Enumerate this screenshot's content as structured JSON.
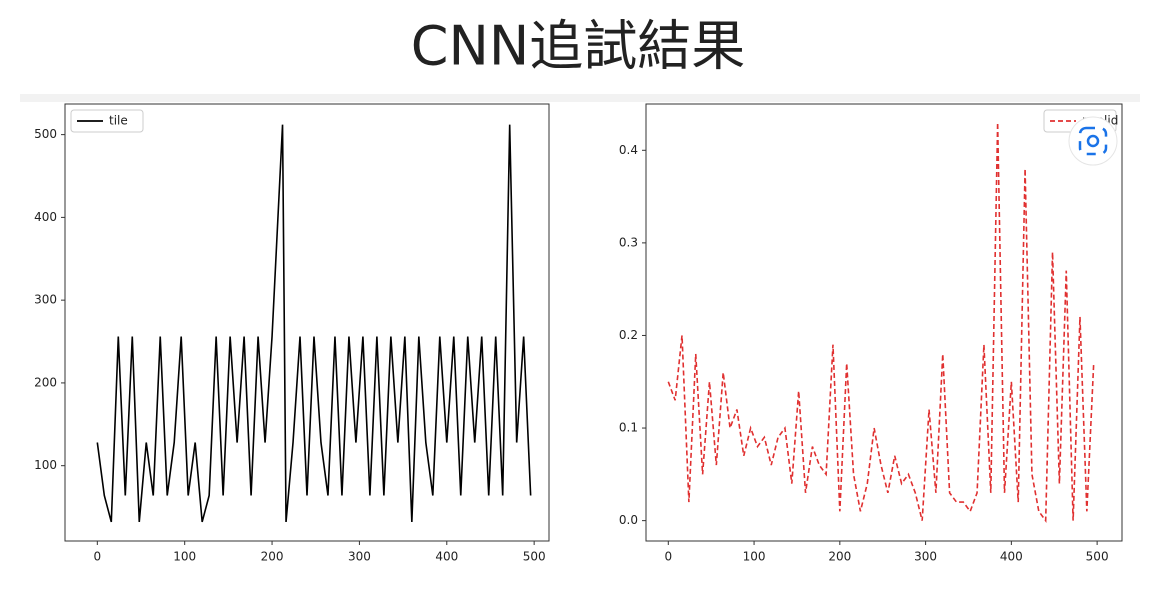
{
  "title": "CNN追試結果",
  "chart_data": [
    {
      "type": "line",
      "legend": "upper left",
      "x": [
        0,
        8,
        16,
        24,
        32,
        40,
        48,
        56,
        64,
        72,
        80,
        88,
        96,
        104,
        112,
        120,
        128,
        136,
        144,
        152,
        160,
        168,
        176,
        184,
        192,
        200,
        212,
        216,
        224,
        232,
        240,
        248,
        256,
        264,
        272,
        280,
        288,
        296,
        304,
        312,
        320,
        328,
        336,
        344,
        352,
        360,
        368,
        376,
        384,
        392,
        400,
        408,
        416,
        424,
        432,
        440,
        448,
        456,
        464,
        472,
        480,
        488,
        496
      ],
      "series": [
        {
          "name": "tile",
          "color": "#000000",
          "linestyle": "solid",
          "values": [
            128,
            64,
            32,
            256,
            64,
            256,
            32,
            128,
            64,
            256,
            64,
            128,
            256,
            64,
            128,
            32,
            64,
            256,
            64,
            256,
            128,
            256,
            64,
            256,
            128,
            256,
            512,
            32,
            128,
            256,
            64,
            256,
            128,
            64,
            256,
            64,
            256,
            128,
            256,
            64,
            256,
            64,
            256,
            128,
            256,
            32,
            256,
            128,
            64,
            256,
            128,
            256,
            64,
            256,
            128,
            256,
            64,
            256,
            64,
            512,
            128,
            256,
            64
          ]
        }
      ],
      "xlim": [
        -37,
        517
      ],
      "xticks": [
        0,
        100,
        200,
        300,
        400,
        500
      ],
      "ylim": [
        9,
        537
      ],
      "yticks": [
        100,
        200,
        300,
        400,
        500
      ]
    },
    {
      "type": "line",
      "legend": "upper right",
      "x": [
        0,
        8,
        16,
        24,
        32,
        40,
        48,
        56,
        64,
        72,
        80,
        88,
        96,
        104,
        112,
        120,
        128,
        136,
        144,
        152,
        160,
        168,
        176,
        184,
        192,
        200,
        208,
        216,
        224,
        232,
        240,
        248,
        256,
        264,
        272,
        280,
        288,
        296,
        304,
        312,
        320,
        328,
        336,
        344,
        352,
        360,
        368,
        376,
        384,
        392,
        400,
        408,
        416,
        424,
        432,
        440,
        448,
        456,
        464,
        472,
        480,
        488,
        496
      ],
      "series": [
        {
          "name": "nvalid",
          "color": "#e03030",
          "linestyle": "dashed",
          "values": [
            0.15,
            0.13,
            0.2,
            0.02,
            0.18,
            0.05,
            0.15,
            0.06,
            0.16,
            0.1,
            0.12,
            0.07,
            0.1,
            0.08,
            0.09,
            0.06,
            0.09,
            0.1,
            0.04,
            0.14,
            0.03,
            0.08,
            0.06,
            0.05,
            0.19,
            0.01,
            0.17,
            0.05,
            0.01,
            0.04,
            0.1,
            0.06,
            0.03,
            0.07,
            0.04,
            0.05,
            0.03,
            0.0,
            0.12,
            0.03,
            0.18,
            0.03,
            0.02,
            0.02,
            0.01,
            0.03,
            0.19,
            0.03,
            0.43,
            0.03,
            0.15,
            0.02,
            0.38,
            0.05,
            0.01,
            0.0,
            0.29,
            0.04,
            0.27,
            0.0,
            0.22,
            0.01,
            0.17
          ]
        }
      ],
      "xlim": [
        -26,
        529
      ],
      "xticks": [
        0,
        100,
        200,
        300,
        400,
        500
      ],
      "ylim": [
        -0.022,
        0.45
      ],
      "yticks": [
        {
          "value": 0.0,
          "label": "0.0"
        },
        0.1,
        0.2,
        0.3,
        0.4
      ]
    }
  ]
}
